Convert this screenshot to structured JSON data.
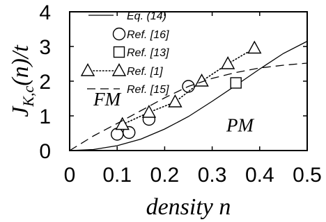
{
  "chart_data": {
    "type": "line",
    "xlabel": "density n",
    "ylabel": "J_K,c(n)/t",
    "ylabel_parts": {
      "main": "J",
      "sub": "K,c",
      "rest": "(n)/t"
    },
    "xlim": [
      0,
      0.5
    ],
    "ylim": [
      0,
      4
    ],
    "x_ticks": [
      "0",
      "0.1",
      "0.2",
      "0.3",
      "0.4",
      "0.5"
    ],
    "y_ticks": [
      "0",
      "1",
      "2",
      "3",
      "4"
    ],
    "legend_position": "top-left",
    "annotations": [
      {
        "text": "FM",
        "x": 0.05,
        "y": 1.3
      },
      {
        "text": "PM",
        "x": 0.33,
        "y": 0.55
      }
    ],
    "series": [
      {
        "name": "Eq. (14)",
        "style": "solid",
        "marker": "none",
        "x": [
          0.0,
          0.05,
          0.1,
          0.15,
          0.2,
          0.25,
          0.3,
          0.35,
          0.4,
          0.45,
          0.5
        ],
        "y": [
          0.0,
          0.03,
          0.14,
          0.33,
          0.62,
          0.98,
          1.42,
          1.88,
          2.35,
          2.8,
          3.15
        ]
      },
      {
        "name": "Ref. [16]",
        "style": "none",
        "marker": "circle",
        "x": [
          0.1,
          0.125,
          0.167,
          0.25
        ],
        "y": [
          0.47,
          0.52,
          0.9,
          1.85
        ]
      },
      {
        "name": "Ref. [13]",
        "style": "none",
        "marker": "square",
        "x": [
          0.35
        ],
        "y": [
          1.95
        ]
      },
      {
        "name": "Ref. [1]",
        "style": "dotted",
        "marker": "triangle",
        "x": [
          0.111,
          0.167,
          0.222,
          0.278,
          0.333,
          0.389
        ],
        "y": [
          0.75,
          1.1,
          1.4,
          2.0,
          2.5,
          2.95
        ]
      },
      {
        "name": "Ref. [15]",
        "style": "dashed",
        "marker": "none",
        "x": [
          0.0,
          0.05,
          0.1,
          0.15,
          0.2,
          0.25,
          0.3,
          0.35,
          0.4,
          0.45,
          0.5
        ],
        "y": [
          0.0,
          0.42,
          0.78,
          1.15,
          1.52,
          1.85,
          2.08,
          2.25,
          2.38,
          2.46,
          2.52
        ]
      }
    ]
  }
}
